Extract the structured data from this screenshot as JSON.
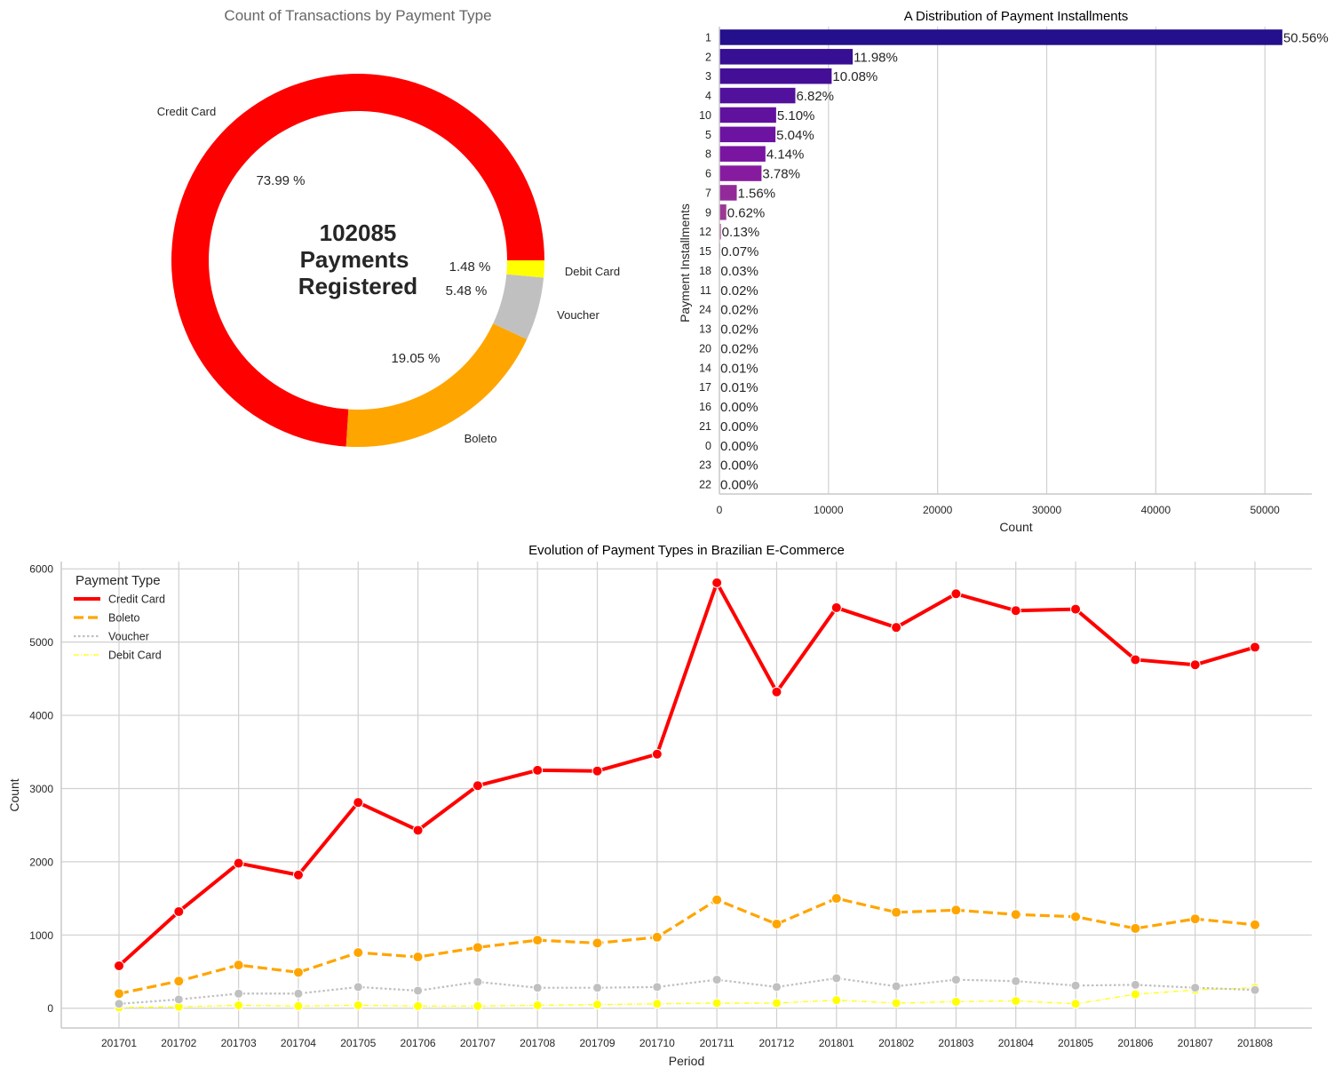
{
  "chart_data": [
    {
      "type": "pie",
      "subtype": "donut",
      "title": "Count of Transactions by Payment Type",
      "center_text": [
        "102085",
        "Payments",
        "Registered"
      ],
      "slices": [
        {
          "label": "Credit Card",
          "value": 73.99,
          "pct_label": "73.99 %",
          "color": "#ff0000"
        },
        {
          "label": "Boleto",
          "value": 19.05,
          "pct_label": "19.05 %",
          "color": "#ffa500"
        },
        {
          "label": "Voucher",
          "value": 5.48,
          "pct_label": "5.48 %",
          "color": "#c0c0c0"
        },
        {
          "label": "Debit Card",
          "value": 1.48,
          "pct_label": "1.48 %",
          "color": "#ffff00"
        }
      ]
    },
    {
      "type": "bar",
      "orientation": "horizontal",
      "title": "A Distribution of Payment Installments",
      "xlabel": "Count",
      "ylabel": "Payment Installments",
      "xlim": [
        0,
        54300
      ],
      "xticks": [
        0,
        10000,
        20000,
        30000,
        40000,
        50000
      ],
      "categories": [
        "1",
        "2",
        "3",
        "4",
        "10",
        "5",
        "8",
        "6",
        "7",
        "9",
        "12",
        "15",
        "18",
        "11",
        "24",
        "13",
        "20",
        "14",
        "17",
        "16",
        "21",
        "0",
        "23",
        "22"
      ],
      "values": [
        51600,
        12220,
        10290,
        6960,
        5200,
        5140,
        4220,
        3860,
        1590,
        630,
        133,
        71,
        31,
        20,
        20,
        20,
        20,
        10,
        10,
        3,
        2,
        2,
        1,
        1
      ],
      "labels": [
        "50.56%",
        "11.98%",
        "10.08%",
        "6.82%",
        "5.10%",
        "5.04%",
        "4.14%",
        "3.78%",
        "1.56%",
        "0.62%",
        "0.13%",
        "0.07%",
        "0.03%",
        "0.02%",
        "0.02%",
        "0.02%",
        "0.02%",
        "0.01%",
        "0.01%",
        "0.00%",
        "0.00%",
        "0.00%",
        "0.00%",
        "0.00%"
      ],
      "colors": [
        "#240f8c",
        "#360f93",
        "#440f96",
        "#52119c",
        "#60129f",
        "#6d13a2",
        "#7a15a2",
        "#871b9f",
        "#922a99",
        "#9c3894",
        "#a5448e",
        "#ad5088",
        "#b45b82",
        "#bb667c",
        "#c27177",
        "#c87b72",
        "#cd856d",
        "#d28f68",
        "#d69963",
        "#daa35e",
        "#dead59",
        "#e2b754",
        "#e6c14f",
        "#eacb4a"
      ]
    },
    {
      "type": "line",
      "title": "Evolution of Payment Types in Brazilian E-Commerce",
      "xlabel": "Period",
      "ylabel": "Count",
      "ylim": [
        -270,
        6100
      ],
      "yticks": [
        0,
        1000,
        2000,
        3000,
        4000,
        5000,
        6000
      ],
      "x": [
        "201701",
        "201702",
        "201703",
        "201704",
        "201705",
        "201706",
        "201707",
        "201708",
        "201709",
        "201710",
        "201711",
        "201712",
        "201801",
        "201802",
        "201803",
        "201804",
        "201805",
        "201806",
        "201807",
        "201808"
      ],
      "legend_title": "Payment Type",
      "series": [
        {
          "name": "Credit Card",
          "color": "#ff0000",
          "style": "solid",
          "values": [
            580,
            1320,
            1980,
            1820,
            2810,
            2430,
            3040,
            3250,
            3240,
            3470,
            5810,
            4320,
            5470,
            5200,
            5660,
            5430,
            5450,
            4760,
            4690,
            4930
          ]
        },
        {
          "name": "Boleto",
          "color": "#ffa500",
          "style": "dashed",
          "values": [
            200,
            370,
            590,
            490,
            760,
            700,
            830,
            930,
            890,
            970,
            1480,
            1150,
            1500,
            1310,
            1340,
            1280,
            1250,
            1090,
            1220,
            1140
          ]
        },
        {
          "name": "Voucher",
          "color": "#c0c0c0",
          "style": "dotted",
          "values": [
            60,
            120,
            200,
            200,
            290,
            240,
            360,
            280,
            280,
            290,
            390,
            290,
            410,
            300,
            390,
            370,
            310,
            320,
            280,
            250
          ]
        },
        {
          "name": "Debit Card",
          "color": "#ffff00",
          "style": "dashdot",
          "values": [
            10,
            20,
            40,
            30,
            40,
            30,
            30,
            40,
            50,
            60,
            70,
            70,
            110,
            70,
            90,
            100,
            60,
            190,
            250,
            280
          ]
        }
      ]
    }
  ]
}
